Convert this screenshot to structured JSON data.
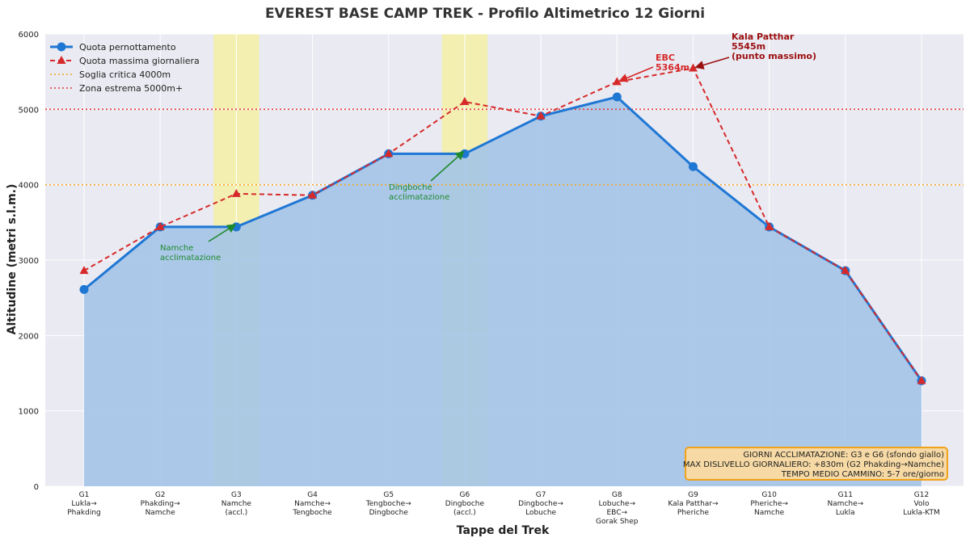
{
  "chart_data": {
    "type": "line",
    "title": "EVEREST BASE CAMP TREK - Profilo Altimetrico 12 Giorni",
    "xlabel": "Tappe del Trek",
    "ylabel": "Altitudine (metri s.l.m.)",
    "ylim": [
      0,
      6000
    ],
    "yticks": [
      "0",
      "1000",
      "2000",
      "3000",
      "4000",
      "5000",
      "6000"
    ],
    "grid": true,
    "legend_position": "top-left",
    "categories": [
      [
        "G1",
        "Lukla→",
        "Phakding"
      ],
      [
        "G2",
        "Phakding→",
        "Namche"
      ],
      [
        "G3",
        "Namche",
        "(accl.)"
      ],
      [
        "G4",
        "Namche→",
        "Tengboche"
      ],
      [
        "G5",
        "Tengboche→",
        "Dingboche"
      ],
      [
        "G6",
        "Dingboche",
        "(accl.)"
      ],
      [
        "G7",
        "Dingboche→",
        "Lobuche"
      ],
      [
        "G8",
        "Lobuche→",
        "EBC→",
        "Gorak Shep"
      ],
      [
        "G9",
        "Kala Patthar→",
        "Pheriche"
      ],
      [
        "G10",
        "Pheriche→",
        "Namche"
      ],
      [
        "G11",
        "Namche→",
        "Lukla"
      ],
      [
        "G12",
        "Volo",
        "Lukla-KTM"
      ]
    ],
    "series": [
      {
        "name": "Quota pernottamento",
        "color": "#1f77d4",
        "style": "solid-circle",
        "values": [
          2610,
          3440,
          3440,
          3860,
          4410,
          4410,
          4910,
          5164,
          4240,
          3440,
          2860,
          1400
        ]
      },
      {
        "name": "Quota massima giornaliera",
        "color": "#d62a2a",
        "style": "dashed-triangle",
        "values": [
          2860,
          3440,
          3880,
          3860,
          4410,
          5100,
          4910,
          5364,
          5545,
          3440,
          2860,
          1400
        ]
      }
    ],
    "thresholds": [
      {
        "name": "Soglia critica 4000m",
        "value": 4000,
        "color": "#f5a623"
      },
      {
        "name": "Zona estrema 5000m+",
        "value": 5000,
        "color": "#e53935"
      }
    ],
    "acclimatization_days": [
      2,
      5
    ],
    "annotations": [
      {
        "lines": [
          "Namche",
          "acclimatazione"
        ],
        "target_index": 2,
        "target_value": 3440,
        "style": "green"
      },
      {
        "lines": [
          "Dingboche",
          "acclimatazione"
        ],
        "target_index": 5,
        "target_value": 4410,
        "style": "green"
      },
      {
        "lines": [
          "EBC",
          "5364m"
        ],
        "target_index": 7,
        "target_value": 5364,
        "style": "red"
      },
      {
        "lines": [
          "Kala Patthar",
          "5545m",
          "(punto massimo)"
        ],
        "target_index": 8,
        "target_value": 5545,
        "style": "darkred"
      }
    ],
    "info_box": [
      "GIORNI ACCLIMATAZIONE: G3 e G6 (sfondo giallo)",
      "MAX DISLIVELLO GIORNALIERO: +830m (G2 Phakding→Namche)",
      "TEMPO MEDIO CAMMINO: 5-7 ore/giorno"
    ]
  }
}
